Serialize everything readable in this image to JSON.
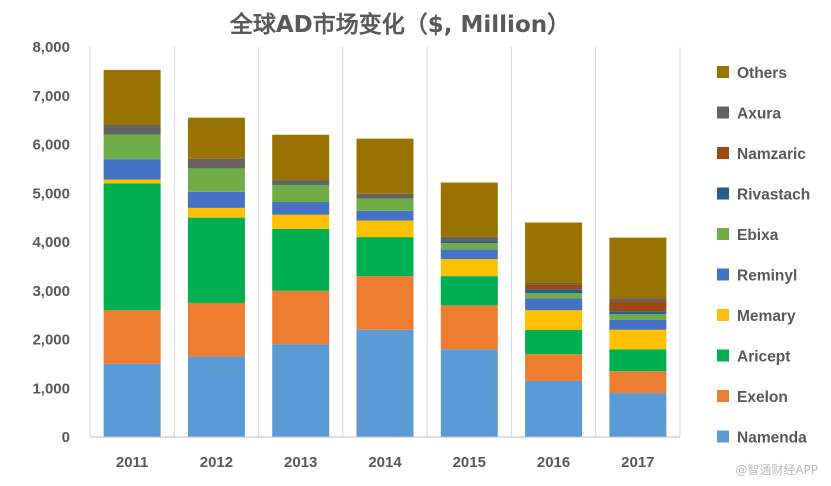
{
  "chart_data": {
    "type": "bar",
    "stacked": true,
    "title": "全球AD市场变化（$, Million）",
    "xlabel": "",
    "ylabel": "",
    "ylim": [
      0,
      8000
    ],
    "yticks": [
      0,
      1000,
      2000,
      3000,
      4000,
      5000,
      6000,
      7000,
      8000
    ],
    "ytick_labels": [
      "0",
      "1,000",
      "2,000",
      "3,000",
      "4,000",
      "5,000",
      "6,000",
      "7,000",
      "8,000"
    ],
    "grid": "vertical separators",
    "legend_position": "right",
    "categories": [
      "2011",
      "2012",
      "2013",
      "2014",
      "2015",
      "2016",
      "2017"
    ],
    "series": [
      {
        "name": "Namenda",
        "color": "#5b9bd5",
        "values": [
          1500,
          1650,
          1900,
          2200,
          1800,
          1150,
          900
        ]
      },
      {
        "name": "Exelon",
        "color": "#ed7d31",
        "values": [
          1100,
          1100,
          1100,
          1100,
          900,
          550,
          450
        ]
      },
      {
        "name": "Aricept",
        "color": "#00b050",
        "values": [
          2600,
          1750,
          1270,
          800,
          600,
          500,
          450
        ]
      },
      {
        "name": "Memary",
        "color": "#ffc000",
        "values": [
          80,
          200,
          290,
          340,
          350,
          400,
          400
        ]
      },
      {
        "name": "Reminyl",
        "color": "#4472c4",
        "values": [
          420,
          330,
          260,
          200,
          200,
          240,
          200
        ]
      },
      {
        "name": "Ebixa",
        "color": "#70ad47",
        "values": [
          500,
          480,
          350,
          250,
          130,
          110,
          120
        ]
      },
      {
        "name": "Rivastach",
        "color": "#255e91",
        "values": [
          0,
          0,
          0,
          0,
          30,
          80,
          60
        ]
      },
      {
        "name": "Namzaric",
        "color": "#9e480e",
        "values": [
          0,
          0,
          0,
          0,
          0,
          100,
          200
        ]
      },
      {
        "name": "Axura",
        "color": "#636363",
        "values": [
          200,
          200,
          100,
          100,
          100,
          30,
          60
        ]
      },
      {
        "name": "Others",
        "color": "#997300",
        "values": [
          1130,
          840,
          930,
          1130,
          1110,
          1240,
          1250
        ]
      }
    ]
  },
  "watermark": "@智通财经APP"
}
